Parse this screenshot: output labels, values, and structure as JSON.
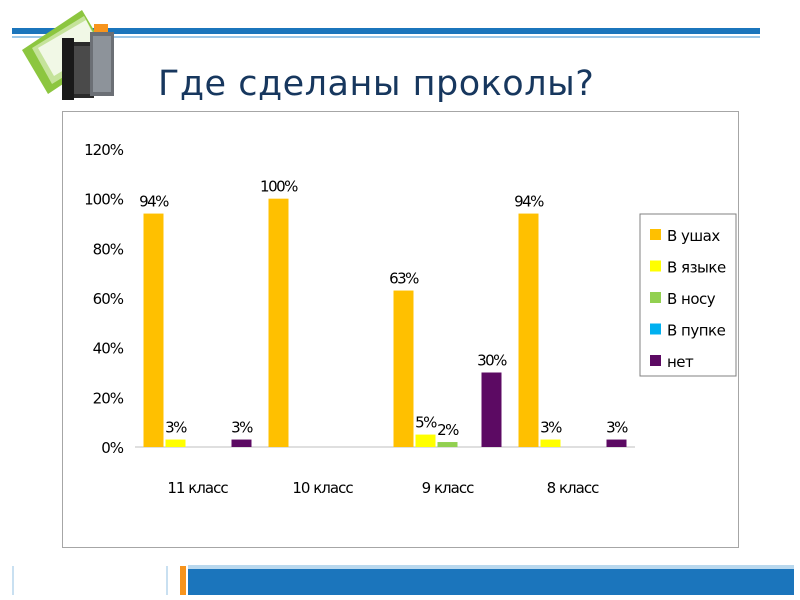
{
  "slide": {
    "title": "Где сделаны проколы?"
  },
  "icons": {
    "logo": "books-folder-icon"
  },
  "colors": {
    "accent_blue": "#1b75bc",
    "accent_orange": "#f7941d",
    "title": "#17375e"
  },
  "chart_data": {
    "type": "bar",
    "categories": [
      "11 класс",
      "10 класс",
      "9 класс",
      "8 класс"
    ],
    "series": [
      {
        "name": "В ушах",
        "color": "#ffc000",
        "values": [
          94,
          100,
          63,
          94
        ]
      },
      {
        "name": "В языке",
        "color": "#ffff00",
        "values": [
          3,
          null,
          5,
          3
        ]
      },
      {
        "name": "В носу",
        "color": "#92d050",
        "values": [
          null,
          null,
          2,
          null
        ]
      },
      {
        "name": "В пупке",
        "color": "#00b0f0",
        "values": [
          null,
          null,
          null,
          null
        ]
      },
      {
        "name": "нет",
        "color": "#5c0a63",
        "values": [
          3,
          null,
          30,
          3
        ]
      }
    ],
    "y_ticks": [
      "0%",
      "20%",
      "40%",
      "60%",
      "80%",
      "100%",
      "120%"
    ],
    "ylim": [
      0,
      120
    ],
    "value_format": "percent",
    "legend_position": "right",
    "grid": false
  }
}
